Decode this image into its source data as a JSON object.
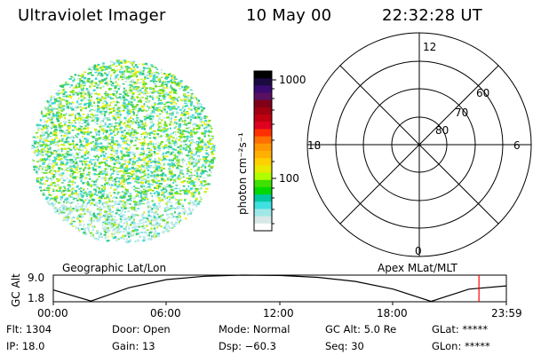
{
  "header": {
    "instrument": "Ultraviolet Imager",
    "date": "10 May 00",
    "time": "22:32:28 UT"
  },
  "colorbar": {
    "label": "photon cm⁻²s⁻¹",
    "tick_labels": [
      "1000",
      "100"
    ],
    "colors": [
      "#000000",
      "#1a0a40",
      "#3a0a70",
      "#5a1060",
      "#800018",
      "#a00010",
      "#c00010",
      "#e00020",
      "#ff3000",
      "#ff7000",
      "#ff9800",
      "#ffb000",
      "#ffd000",
      "#e8e800",
      "#b0ff00",
      "#40e000",
      "#00d800",
      "#00c8a0",
      "#40e0e0",
      "#a0e8e8",
      "#d8e8e8",
      "#ffffff"
    ]
  },
  "polar": {
    "mlt_labels": [
      "12",
      "18",
      "6",
      "0"
    ],
    "lat_labels": [
      "60",
      "70",
      "80"
    ]
  },
  "timeline": {
    "y_title": "GC Alt",
    "y_ticks": [
      "9.0",
      "1.8"
    ],
    "left_title": "Geographic Lat/Lon",
    "right_title": "Apex MLat/MLT",
    "x_ticks": [
      "00:00",
      "06:00",
      "12:00",
      "18:00",
      "23:59"
    ]
  },
  "info": {
    "flt": "Flt: 1304",
    "ip": "IP: 18.0",
    "door": "Door: Open",
    "gain": "Gain: 13",
    "mode": "Mode: Normal",
    "dsp": "Dsp: −60.3",
    "gcalt": "GC Alt: 5.0 Re",
    "seq": "Seq: 30",
    "glat": "GLat: *****",
    "glon": "GLon: *****"
  },
  "chart_data": {
    "type": "line",
    "ylabel": "GC Alt",
    "x": [
      "00:00",
      "02:00",
      "04:00",
      "06:00",
      "08:00",
      "10:00",
      "12:00",
      "14:00",
      "16:00",
      "18:00",
      "20:00",
      "22:00",
      "23:59"
    ],
    "values": [
      5.0,
      2.0,
      5.6,
      7.8,
      8.7,
      9.0,
      8.9,
      8.4,
      7.3,
      5.2,
      1.9,
      5.2,
      6.1
    ],
    "ylim": [
      1.8,
      9.0
    ],
    "marker_time": "22:32",
    "marker_color": "#ff0000"
  }
}
